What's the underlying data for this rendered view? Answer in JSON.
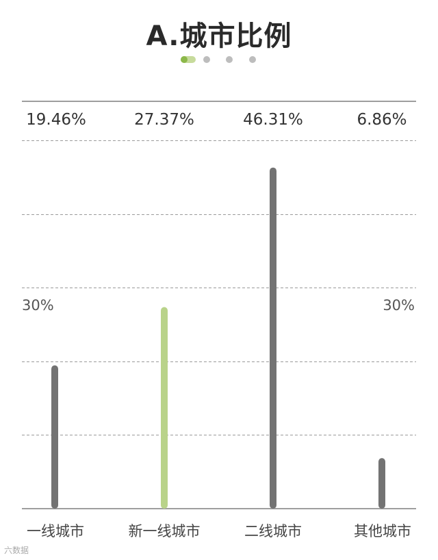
{
  "page": {
    "title": "A.城市比例",
    "pager": {
      "count": 4,
      "active_index": 0
    },
    "watermark": "六数据"
  },
  "chart_data": {
    "type": "bar",
    "categories": [
      "一线城市",
      "新一线城市",
      "二线城市",
      "其他城市"
    ],
    "values": [
      19.46,
      27.37,
      46.31,
      6.86
    ],
    "value_labels": [
      "19.46%",
      "27.37%",
      "46.31%",
      "6.86%"
    ],
    "reference_label": "30%",
    "ylim": [
      0,
      50
    ],
    "grid": true,
    "gridline_values": [
      10,
      20,
      30,
      40,
      50
    ],
    "colors": {
      "bar": "#737373",
      "highlight": "#b9d38a",
      "grid": "#9a9a9a",
      "baseline": "#9e9e9e"
    },
    "highlight_index": 1
  }
}
